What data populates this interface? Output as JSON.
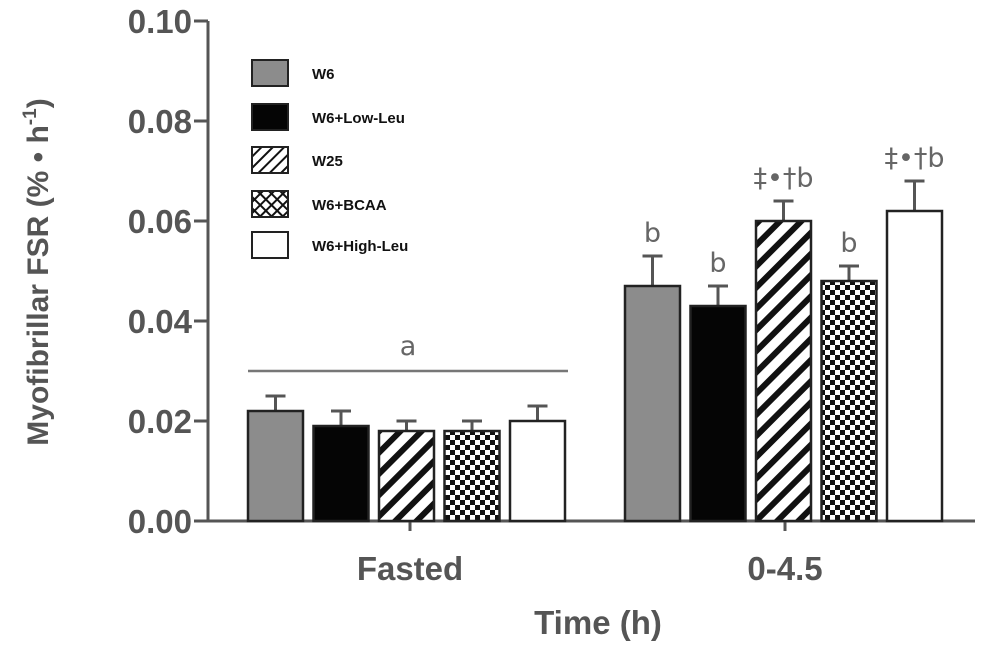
{
  "chart_data": {
    "type": "bar",
    "title": "",
    "xlabel": "Time (h)",
    "ylabel": "Myofibrillar FSR (% • h",
    "ylabel_sup": "-1",
    "ylabel_close": ")",
    "ylim": [
      0,
      0.1
    ],
    "yticks": [
      "0.00",
      "0.02",
      "0.04",
      "0.06",
      "0.08",
      "0.10"
    ],
    "categories": [
      "Fasted",
      "0-4.5"
    ],
    "series": [
      {
        "name": "W6",
        "fill": "gray",
        "values": [
          0.022,
          0.047
        ],
        "errors": [
          0.003,
          0.006
        ]
      },
      {
        "name": "W6+Low-Leu",
        "fill": "black",
        "values": [
          0.019,
          0.043
        ],
        "errors": [
          0.003,
          0.004
        ]
      },
      {
        "name": "W25",
        "fill": "hatch",
        "values": [
          0.018,
          0.06
        ],
        "errors": [
          0.002,
          0.004
        ]
      },
      {
        "name": "W6+BCAA",
        "fill": "check",
        "values": [
          0.018,
          0.048
        ],
        "errors": [
          0.002,
          0.003
        ]
      },
      {
        "name": "W6+High-Leu",
        "fill": "white",
        "values": [
          0.02,
          0.062
        ],
        "errors": [
          0.003,
          0.006
        ]
      }
    ],
    "annotations": {
      "fasted_line_label": "a",
      "bar_labels": [
        "b",
        "b",
        "‡•†b",
        "b",
        "‡•†b"
      ]
    },
    "legend_position": "top-left",
    "colors": {
      "gray": "#8c8c8c",
      "black": "#050505",
      "axis": "#555555",
      "annot": "#666666"
    }
  }
}
